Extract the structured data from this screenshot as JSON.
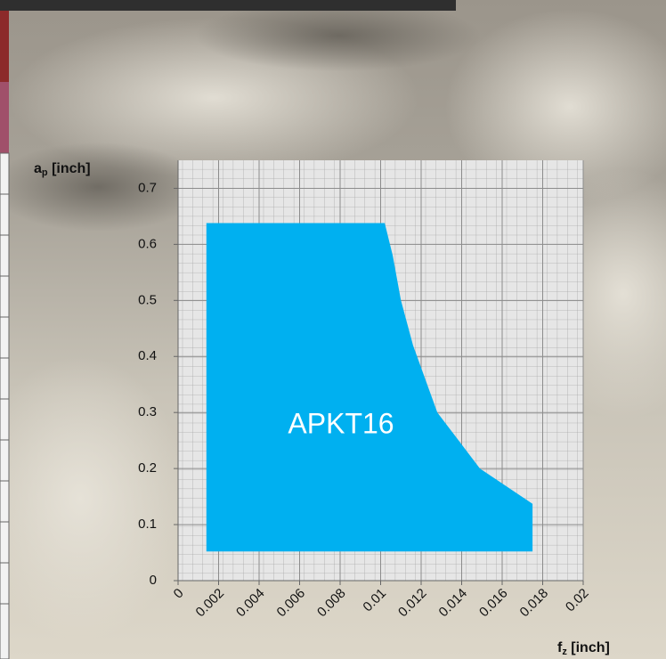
{
  "chart_data": {
    "type": "area",
    "y_label": {
      "text": "a",
      "sub": "p",
      "rest": " [inch]"
    },
    "x_label": {
      "text": "f",
      "sub": "z",
      "rest": " [inch]"
    },
    "annotation": "APKT16",
    "series": [
      {
        "color": "#00b0f0",
        "x": [
          0.0014,
          0.0014,
          0.0102,
          0.0106,
          0.011,
          0.0116,
          0.0128,
          0.0149,
          0.0175,
          0.0175
        ],
        "values": [
          0.052,
          0.638,
          0.638,
          0.58,
          0.5,
          0.42,
          0.3,
          0.2,
          0.137,
          0.052
        ]
      }
    ],
    "xlim": [
      0,
      0.02
    ],
    "ylim": [
      0,
      0.75
    ],
    "xticks": [
      0,
      0.002,
      0.004,
      0.006,
      0.008,
      0.01,
      0.012,
      0.014,
      0.016,
      0.018,
      0.02
    ],
    "yticks": [
      0,
      0.1,
      0.2,
      0.3,
      0.4,
      0.5,
      0.6,
      0.7
    ],
    "grid": true
  }
}
